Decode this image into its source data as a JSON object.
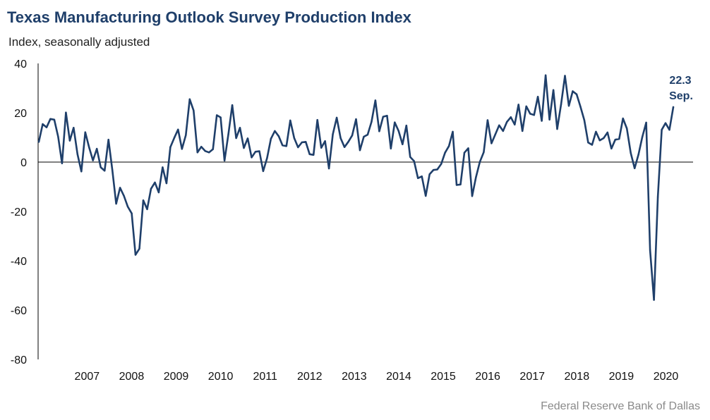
{
  "title": "Texas Manufacturing Outlook Survey Production Index",
  "subtitle": "Index, seasonally adjusted",
  "source": "Federal Reserve Bank of Dallas",
  "colors": {
    "line": "#1f3f6a",
    "title": "#1f3f6a",
    "axis": "#000000",
    "source": "#8a8a8a"
  },
  "chart_data": {
    "type": "line",
    "title": "Texas Manufacturing Outlook Survey Production Index",
    "subtitle": "Index, seasonally adjusted",
    "xlabel": "",
    "ylabel": "",
    "ylim": [
      -80,
      40
    ],
    "yticks": [
      40,
      20,
      0,
      -20,
      -40,
      -60,
      -80
    ],
    "x_start": "2006-06",
    "x_end": "2020-09",
    "xticks": [
      "2007",
      "2008",
      "2009",
      "2010",
      "2011",
      "2012",
      "2013",
      "2014",
      "2015",
      "2016",
      "2017",
      "2018",
      "2019",
      "2020"
    ],
    "grid": false,
    "legend": "none",
    "annotation": {
      "value": "22.3",
      "label": "Sep."
    },
    "series": [
      {
        "values": [
          8.2,
          15.4,
          14.1,
          17.5,
          17.2,
          10.3,
          -0.5,
          20.1,
          8.7,
          13.9,
          3.2,
          -3.8,
          12.1,
          5.9,
          0.7,
          5.4,
          -2.1,
          -3.5,
          9.1,
          -3.3,
          -16.9,
          -10.4,
          -13.7,
          -18.1,
          -20.8,
          -37.6,
          -35.1,
          -15.5,
          -19.1,
          -10.8,
          -8.3,
          -12.3,
          -2.1,
          -8.6,
          6.1,
          9.8,
          13.2,
          5.3,
          10.9,
          25.5,
          20.9,
          3.9,
          6.2,
          4.5,
          3.9,
          5.2,
          19.0,
          18.1,
          0.6,
          11.3,
          23.1,
          9.7,
          13.9,
          5.7,
          9.6,
          1.9,
          4.2,
          4.4,
          -3.7,
          1.6,
          9.5,
          12.6,
          10.5,
          6.8,
          6.5,
          16.9,
          9.8,
          6.0,
          8.0,
          8.2,
          3.2,
          2.9,
          17.1,
          5.8,
          8.5,
          -2.6,
          11.3,
          18.0,
          9.7,
          6.1,
          8.2,
          10.8,
          17.4,
          4.8,
          10.3,
          11.1,
          16.3,
          25.0,
          12.5,
          18.4,
          18.8,
          5.5,
          16.1,
          12.6,
          7.2,
          14.8,
          2.1,
          0.4,
          -6.5,
          -5.8,
          -13.7,
          -4.9,
          -3.2,
          -3.0,
          -0.8,
          3.8,
          6.5,
          12.3,
          -9.3,
          -9.1,
          3.8,
          5.6,
          -13.8,
          -6.1,
          0.1,
          4.0,
          17.0,
          7.6,
          11.2,
          14.9,
          12.6,
          16.3,
          18.2,
          15.2,
          23.3,
          12.6,
          22.6,
          19.6,
          19.1,
          26.5,
          16.7,
          35.2,
          17.2,
          29.2,
          13.4,
          23.4,
          35.0,
          22.8,
          28.7,
          27.5,
          22.5,
          17.0,
          7.9,
          7.0,
          12.3,
          8.8,
          9.7,
          12.0,
          5.5,
          9.1,
          9.4,
          17.7,
          13.6,
          3.7,
          -2.5,
          3.1,
          10.2,
          16.0,
          -35.7,
          -55.9,
          -14.1,
          13.1,
          15.8,
          13.1,
          22.3
        ]
      }
    ]
  }
}
